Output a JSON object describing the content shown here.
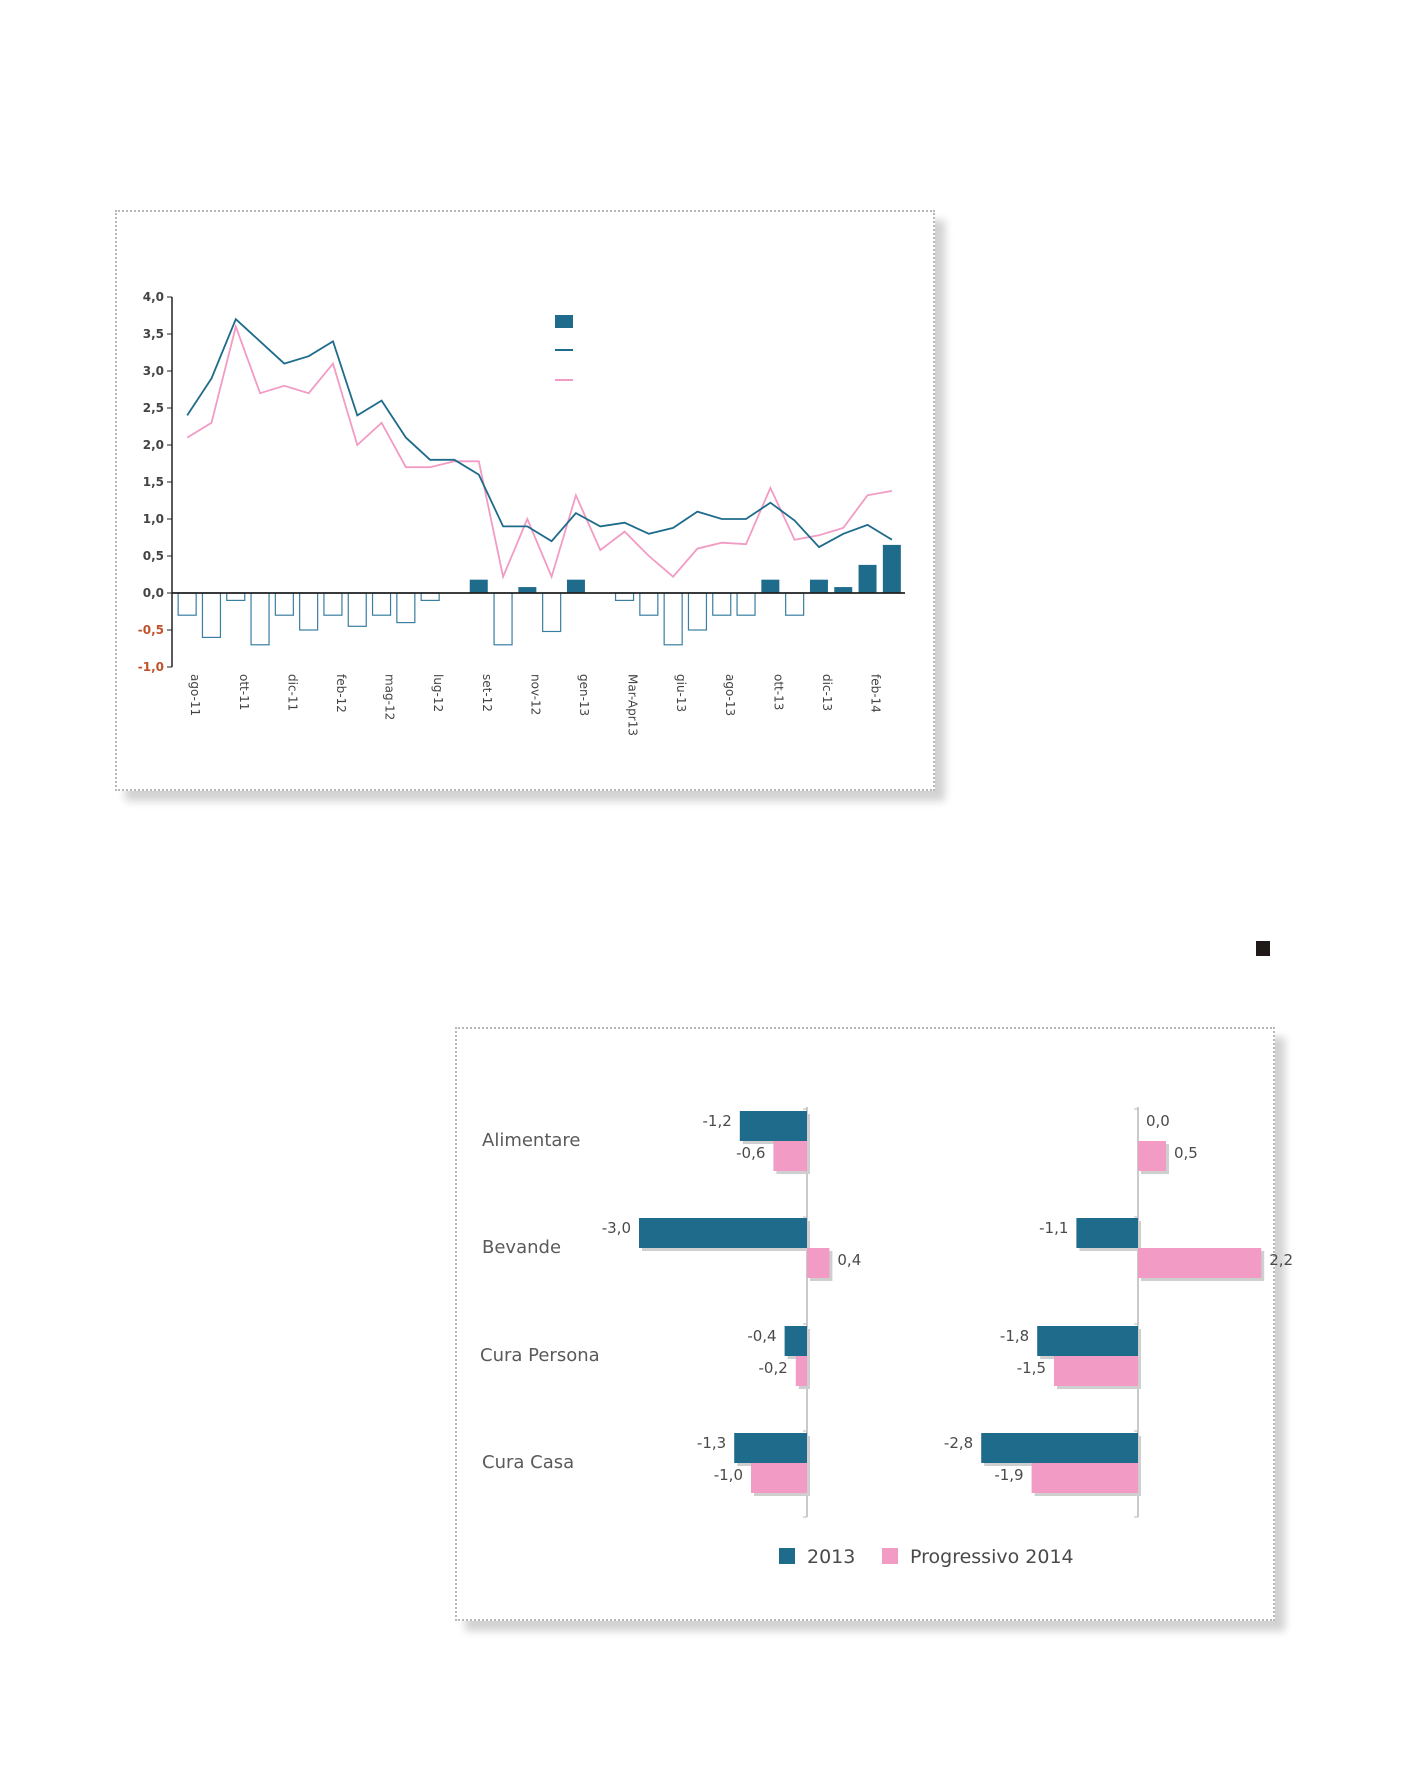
{
  "colors": {
    "dark": "#1f6b8c",
    "pink": "#f29bc4",
    "axis": "#222222",
    "grid_tick": "#444444",
    "negative_tick": "#c0532b",
    "bar_outline": "#3a7ea1"
  },
  "chart_data": [
    {
      "type": "bar",
      "title": "",
      "ylim": [
        -1.0,
        4.0
      ],
      "y_ticks": [
        "4,0",
        "3,5",
        "3,0",
        "2,5",
        "2,0",
        "1,5",
        "1,0",
        "0,5",
        "0,0",
        "-0,5",
        "-1,0"
      ],
      "y_tick_values": [
        4.0,
        3.5,
        3.0,
        2.5,
        2.0,
        1.5,
        1.0,
        0.5,
        0.0,
        -0.5,
        -1.0
      ],
      "x_tick_labels": [
        "ago-11",
        "ott-11",
        "dic-11",
        "feb-12",
        "mag-12",
        "lug-12",
        "set-12",
        "nov-12",
        "gen-13",
        "Mar-Apr13",
        "giu-13",
        "ago-13",
        "ott-13",
        "dic-13",
        "feb-14"
      ],
      "x_tick_positions": [
        0,
        2,
        4,
        6,
        8,
        10,
        12,
        14,
        16,
        18,
        20,
        22,
        24,
        26,
        28
      ],
      "n_points": 30,
      "series": [
        {
          "name": "bars",
          "kind": "bar",
          "values": [
            -0.3,
            -0.6,
            -0.1,
            -0.7,
            -0.3,
            -0.5,
            -0.3,
            -0.45,
            -0.3,
            -0.4,
            -0.1,
            0,
            0.18,
            -0.7,
            0.08,
            -0.52,
            0.18,
            0,
            -0.1,
            -0.3,
            -0.7,
            -0.5,
            -0.3,
            -0.3,
            0.18,
            -0.3,
            0.18,
            0.08,
            0.38,
            0.65
          ]
        },
        {
          "name": "line-dark",
          "kind": "line",
          "values": [
            2.4,
            2.9,
            3.7,
            3.4,
            3.1,
            3.2,
            3.4,
            2.4,
            2.6,
            2.1,
            1.8,
            1.8,
            1.6,
            0.9,
            0.9,
            0.7,
            1.08,
            0.9,
            0.95,
            0.8,
            0.88,
            1.1,
            1.0,
            1.0,
            1.22,
            0.98,
            0.62,
            0.8,
            0.92,
            0.72
          ]
        },
        {
          "name": "line-pink",
          "kind": "line",
          "values": [
            2.1,
            2.3,
            3.6,
            2.7,
            2.8,
            2.7,
            3.1,
            2.0,
            2.3,
            1.7,
            1.7,
            1.78,
            1.78,
            0.22,
            1.0,
            0.22,
            1.32,
            0.58,
            0.83,
            0.5,
            0.22,
            0.6,
            0.68,
            0.66,
            1.42,
            0.72,
            0.78,
            0.88,
            1.32,
            1.38
          ]
        }
      ],
      "legend": {
        "placement": "top-center",
        "entries": [
          "",
          "",
          ""
        ]
      }
    },
    {
      "type": "bar",
      "orientation": "horizontal",
      "categories": [
        "Alimentare",
        "Bevande",
        "Cura Persona",
        "Cura Casa"
      ],
      "legend": [
        "2013",
        "Progressivo 2014"
      ],
      "panels": [
        {
          "name": "left",
          "series": [
            {
              "name": "2013",
              "values": [
                -1.2,
                -3.0,
                -0.4,
                -1.3
              ],
              "labels": [
                "-1,2",
                "-3,0",
                "-0,4",
                "-1,3"
              ]
            },
            {
              "name": "Progressivo 2014",
              "values": [
                -0.6,
                0.4,
                -0.2,
                -1.0
              ],
              "labels": [
                "-0,6",
                "0,4",
                "-0,2",
                "-1,0"
              ]
            }
          ]
        },
        {
          "name": "right",
          "series": [
            {
              "name": "2013",
              "values": [
                0.0,
                -1.1,
                -1.8,
                -2.8
              ],
              "labels": [
                "0,0",
                "-1,1",
                "-1,8",
                "-2,8"
              ]
            },
            {
              "name": "Progressivo 2014",
              "values": [
                0.5,
                2.2,
                -1.5,
                -1.9
              ],
              "labels": [
                "0,5",
                "2,2",
                "-1,5",
                "-1,9"
              ]
            }
          ]
        }
      ]
    }
  ]
}
